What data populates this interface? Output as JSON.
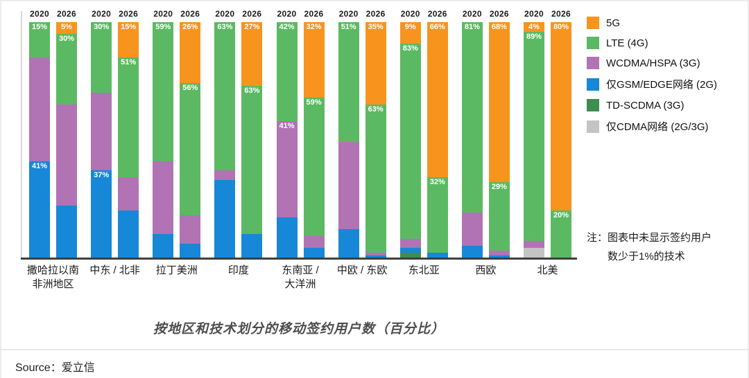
{
  "footer": {
    "source": "Source：爱立信"
  },
  "chart_data": {
    "type": "bar",
    "variant": "stacked-100-percent",
    "title": "按地区和技术划分的移动签约用户数（百分比）",
    "note_lines": [
      "注：图表中未显示签约用户",
      "数少于1%的技术"
    ],
    "ylim": [
      0,
      100
    ],
    "years": [
      "2020",
      "2026"
    ],
    "legend_position": "right",
    "legend": [
      {
        "tech": "5G",
        "color": "#F7941E"
      },
      {
        "tech": "LTE (4G)",
        "color": "#5CB963"
      },
      {
        "tech": "WCDMA/HSPA (3G)",
        "color": "#B173B3"
      },
      {
        "tech": "仅GSM/EDGE网络 (2G)",
        "color": "#1787D8"
      },
      {
        "tech": "TD-SCDMA (3G)",
        "color": "#3E8E4F"
      },
      {
        "tech": "仅CDMA网络 (2G/3G)",
        "color": "#C4C4C4"
      }
    ],
    "groups": [
      {
        "region": [
          "撒哈拉以南",
          "非洲地区"
        ],
        "bars": [
          {
            "year": "2020",
            "segments": [
              {
                "tech": "LTE (4G)",
                "value": 15,
                "label": "15%"
              },
              {
                "tech": "WCDMA/HSPA (3G)",
                "value": 44
              },
              {
                "tech": "仅GSM/EDGE网络 (2G)",
                "value": 41,
                "label": "41%"
              }
            ]
          },
          {
            "year": "2026",
            "segments": [
              {
                "tech": "5G",
                "value": 5,
                "label": "5%"
              },
              {
                "tech": "LTE (4G)",
                "value": 30,
                "label": "30%"
              },
              {
                "tech": "WCDMA/HSPA (3G)",
                "value": 43
              },
              {
                "tech": "仅GSM/EDGE网络 (2G)",
                "value": 22
              }
            ]
          }
        ]
      },
      {
        "region": [
          "中东 / 北非"
        ],
        "bars": [
          {
            "year": "2020",
            "segments": [
              {
                "tech": "LTE (4G)",
                "value": 30,
                "label": "30%"
              },
              {
                "tech": "WCDMA/HSPA (3G)",
                "value": 33
              },
              {
                "tech": "仅GSM/EDGE网络 (2G)",
                "value": 37,
                "label": "37%"
              }
            ]
          },
          {
            "year": "2026",
            "segments": [
              {
                "tech": "5G",
                "value": 15,
                "label": "15%"
              },
              {
                "tech": "LTE (4G)",
                "value": 51,
                "label": "51%"
              },
              {
                "tech": "WCDMA/HSPA (3G)",
                "value": 14
              },
              {
                "tech": "仅GSM/EDGE网络 (2G)",
                "value": 20
              }
            ]
          }
        ]
      },
      {
        "region": [
          "拉丁美洲"
        ],
        "bars": [
          {
            "year": "2020",
            "segments": [
              {
                "tech": "LTE (4G)",
                "value": 59,
                "label": "59%"
              },
              {
                "tech": "WCDMA/HSPA (3G)",
                "value": 31
              },
              {
                "tech": "仅GSM/EDGE网络 (2G)",
                "value": 10
              }
            ]
          },
          {
            "year": "2026",
            "segments": [
              {
                "tech": "5G",
                "value": 26,
                "label": "26%"
              },
              {
                "tech": "LTE (4G)",
                "value": 56,
                "label": "56%"
              },
              {
                "tech": "WCDMA/HSPA (3G)",
                "value": 12
              },
              {
                "tech": "仅GSM/EDGE网络 (2G)",
                "value": 6
              }
            ]
          }
        ]
      },
      {
        "region": [
          "印度"
        ],
        "bars": [
          {
            "year": "2020",
            "segments": [
              {
                "tech": "LTE (4G)",
                "value": 63,
                "label": "63%"
              },
              {
                "tech": "WCDMA/HSPA (3G)",
                "value": 4
              },
              {
                "tech": "仅GSM/EDGE网络 (2G)",
                "value": 33
              }
            ]
          },
          {
            "year": "2026",
            "segments": [
              {
                "tech": "5G",
                "value": 27,
                "label": "27%"
              },
              {
                "tech": "LTE (4G)",
                "value": 63,
                "label": "63%"
              },
              {
                "tech": "仅GSM/EDGE网络 (2G)",
                "value": 10
              }
            ]
          }
        ]
      },
      {
        "region": [
          "东南亚 /",
          "大洋洲"
        ],
        "bars": [
          {
            "year": "2020",
            "segments": [
              {
                "tech": "LTE (4G)",
                "value": 42,
                "label": "42%"
              },
              {
                "tech": "WCDMA/HSPA (3G)",
                "value": 41,
                "label": "41%"
              },
              {
                "tech": "仅GSM/EDGE网络 (2G)",
                "value": 17
              }
            ]
          },
          {
            "year": "2026",
            "segments": [
              {
                "tech": "5G",
                "value": 32,
                "label": "32%"
              },
              {
                "tech": "LTE (4G)",
                "value": 59,
                "label": "59%"
              },
              {
                "tech": "WCDMA/HSPA (3G)",
                "value": 5
              },
              {
                "tech": "仅GSM/EDGE网络 (2G)",
                "value": 4
              }
            ]
          }
        ]
      },
      {
        "region": [
          "中欧 / 东欧"
        ],
        "bars": [
          {
            "year": "2020",
            "segments": [
              {
                "tech": "LTE (4G)",
                "value": 51,
                "label": "51%"
              },
              {
                "tech": "WCDMA/HSPA (3G)",
                "value": 37
              },
              {
                "tech": "仅GSM/EDGE网络 (2G)",
                "value": 12
              }
            ]
          },
          {
            "year": "2026",
            "segments": [
              {
                "tech": "5G",
                "value": 35,
                "label": "35%"
              },
              {
                "tech": "LTE (4G)",
                "value": 63,
                "label": "63%"
              },
              {
                "tech": "WCDMA/HSPA (3G)",
                "value": 1
              },
              {
                "tech": "仅GSM/EDGE网络 (2G)",
                "value": 1
              }
            ]
          }
        ]
      },
      {
        "region": [
          "东北亚"
        ],
        "bars": [
          {
            "year": "2020",
            "segments": [
              {
                "tech": "5G",
                "value": 9,
                "label": "9%"
              },
              {
                "tech": "LTE (4G)",
                "value": 83,
                "label": "83%"
              },
              {
                "tech": "WCDMA/HSPA (3G)",
                "value": 4
              },
              {
                "tech": "仅GSM/EDGE网络 (2G)",
                "value": 2
              },
              {
                "tech": "TD-SCDMA (3G)",
                "value": 2
              }
            ]
          },
          {
            "year": "2026",
            "segments": [
              {
                "tech": "5G",
                "value": 66,
                "label": "66%"
              },
              {
                "tech": "LTE (4G)",
                "value": 32,
                "label": "32%"
              },
              {
                "tech": "仅GSM/EDGE网络 (2G)",
                "value": 2
              }
            ]
          }
        ]
      },
      {
        "region": [
          "西欧"
        ],
        "bars": [
          {
            "year": "2020",
            "segments": [
              {
                "tech": "LTE (4G)",
                "value": 81,
                "label": "81%"
              },
              {
                "tech": "WCDMA/HSPA (3G)",
                "value": 14
              },
              {
                "tech": "仅GSM/EDGE网络 (2G)",
                "value": 5
              }
            ]
          },
          {
            "year": "2026",
            "segments": [
              {
                "tech": "5G",
                "value": 68,
                "label": "68%"
              },
              {
                "tech": "LTE (4G)",
                "value": 29,
                "label": "29%"
              },
              {
                "tech": "WCDMA/HSPA (3G)",
                "value": 2
              },
              {
                "tech": "仅GSM/EDGE网络 (2G)",
                "value": 1
              }
            ]
          }
        ]
      },
      {
        "region": [
          "北美"
        ],
        "bars": [
          {
            "year": "2020",
            "segments": [
              {
                "tech": "5G",
                "value": 4,
                "label": "4%"
              },
              {
                "tech": "LTE (4G)",
                "value": 89,
                "label": "89%"
              },
              {
                "tech": "WCDMA/HSPA (3G)",
                "value": 3
              },
              {
                "tech": "仅CDMA网络 (2G/3G)",
                "value": 4
              }
            ]
          },
          {
            "year": "2026",
            "segments": [
              {
                "tech": "5G",
                "value": 80,
                "label": "80%"
              },
              {
                "tech": "LTE (4G)",
                "value": 20,
                "label": "20%"
              }
            ]
          }
        ]
      }
    ]
  }
}
